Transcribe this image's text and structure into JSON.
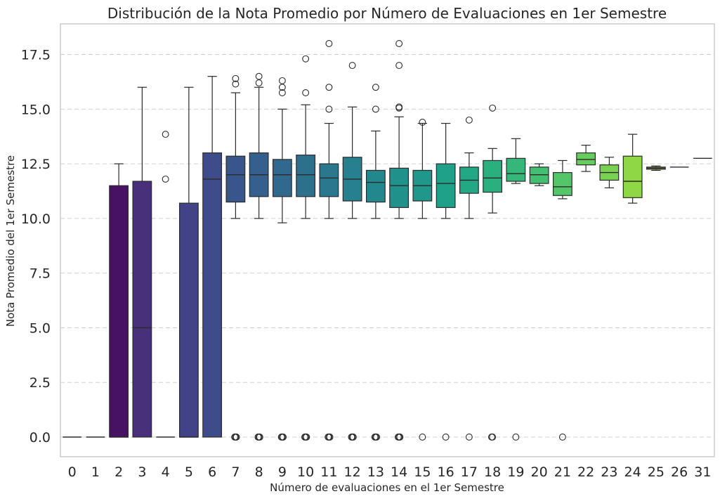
{
  "chart_data": {
    "type": "box",
    "title": "Distribución de la Nota Promedio por Número de Evaluaciones en 1er Semestre",
    "xlabel": "Número de evaluaciones en el 1er Semestre",
    "ylabel": "Nota Promedio del 1er Semestre",
    "ylim": [
      -0.9,
      18.9
    ],
    "yticks": [
      "0.0",
      "2.5",
      "5.0",
      "7.5",
      "10.0",
      "12.5",
      "15.0",
      "17.5"
    ],
    "grid": "horizontal dashed",
    "palette": "viridis",
    "categories": [
      "0",
      "1",
      "2",
      "3",
      "4",
      "5",
      "6",
      "7",
      "8",
      "9",
      "10",
      "11",
      "12",
      "13",
      "14",
      "15",
      "16",
      "17",
      "18",
      "19",
      "20",
      "21",
      "22",
      "23",
      "24",
      "25",
      "26",
      "31"
    ],
    "boxes": [
      {
        "category": "0",
        "whislo": 0,
        "q1": 0,
        "med": 0,
        "q3": 0,
        "whishi": 0,
        "fliers": [],
        "color": "#440154"
      },
      {
        "category": "1",
        "whislo": 0,
        "q1": 0,
        "med": 0,
        "q3": 0,
        "whishi": 0,
        "fliers": [],
        "color": "#46085c"
      },
      {
        "category": "2",
        "whislo": 0,
        "q1": 0,
        "med": 0,
        "q3": 11.5,
        "whishi": 12.5,
        "fliers": [],
        "color": "#471164"
      },
      {
        "category": "3",
        "whislo": 0,
        "q1": 0,
        "med": 5.0,
        "q3": 11.7,
        "whishi": 16.0,
        "fliers": [],
        "color": "#48307a"
      },
      {
        "category": "4",
        "whislo": 0,
        "q1": 0,
        "med": 0,
        "q3": 0,
        "whishi": 0,
        "fliers": [
          11.8,
          13.85
        ],
        "color": "#453882"
      },
      {
        "category": "5",
        "whislo": 0,
        "q1": 0,
        "med": 0,
        "q3": 10.7,
        "whishi": 16.0,
        "fliers": [],
        "color": "#414287"
      },
      {
        "category": "6",
        "whislo": 0,
        "q1": 0,
        "med": 11.8,
        "q3": 13.0,
        "whishi": 16.5,
        "fliers": [],
        "color": "#3e4c8a"
      },
      {
        "category": "7",
        "whislo": 10.0,
        "q1": 10.75,
        "med": 12.0,
        "q3": 12.85,
        "whishi": 15.75,
        "fliers": [
          0,
          0,
          0,
          16.15,
          16.4
        ],
        "color": "#39568c"
      },
      {
        "category": "8",
        "whislo": 10.0,
        "q1": 11.0,
        "med": 12.0,
        "q3": 13.0,
        "whishi": 16.0,
        "fliers": [
          0,
          0,
          0,
          16.2,
          16.5
        ],
        "color": "#355f8d"
      },
      {
        "category": "9",
        "whislo": 9.8,
        "q1": 11.0,
        "med": 12.0,
        "q3": 12.7,
        "whishi": 15.0,
        "fliers": [
          0,
          0,
          0,
          15.75,
          16.0,
          16.3
        ],
        "color": "#31688e"
      },
      {
        "category": "10",
        "whislo": 10.0,
        "q1": 11.0,
        "med": 12.0,
        "q3": 12.9,
        "whishi": 15.2,
        "fliers": [
          0,
          0,
          0,
          15.75,
          17.3
        ],
        "color": "#2d708e"
      },
      {
        "category": "11",
        "whislo": 10.0,
        "q1": 11.0,
        "med": 11.85,
        "q3": 12.5,
        "whishi": 14.35,
        "fliers": [
          0,
          0,
          0,
          15.0,
          16.0,
          18.0
        ],
        "color": "#2a788e"
      },
      {
        "category": "12",
        "whislo": 10.0,
        "q1": 10.8,
        "med": 11.8,
        "q3": 12.8,
        "whishi": 15.1,
        "fliers": [
          0,
          0,
          0,
          17.0
        ],
        "color": "#27808e"
      },
      {
        "category": "13",
        "whislo": 10.0,
        "q1": 10.75,
        "med": 11.65,
        "q3": 12.2,
        "whishi": 14.0,
        "fliers": [
          0,
          0,
          0,
          15.0,
          16.0
        ],
        "color": "#23888e"
      },
      {
        "category": "14",
        "whislo": 10.0,
        "q1": 10.5,
        "med": 11.5,
        "q3": 12.3,
        "whishi": 14.65,
        "fliers": [
          0,
          0,
          0,
          15.05,
          15.1,
          17.0,
          18.0
        ],
        "color": "#21918c"
      },
      {
        "category": "15",
        "whislo": 10.0,
        "q1": 10.8,
        "med": 11.5,
        "q3": 12.2,
        "whishi": 14.35,
        "fliers": [
          0,
          14.4
        ],
        "color": "#1f988b"
      },
      {
        "category": "16",
        "whislo": 10.0,
        "q1": 10.5,
        "med": 11.6,
        "q3": 12.5,
        "whishi": 14.35,
        "fliers": [
          0
        ],
        "color": "#1fa088"
      },
      {
        "category": "17",
        "whislo": 10.0,
        "q1": 11.15,
        "med": 11.75,
        "q3": 12.35,
        "whishi": 13.0,
        "fliers": [
          0,
          14.5
        ],
        "color": "#22a884"
      },
      {
        "category": "18",
        "whislo": 10.25,
        "q1": 11.2,
        "med": 11.85,
        "q3": 12.65,
        "whishi": 13.2,
        "fliers": [
          0,
          0,
          15.05
        ],
        "color": "#2ab07f"
      },
      {
        "category": "19",
        "whislo": 11.6,
        "q1": 11.7,
        "med": 12.05,
        "q3": 12.75,
        "whishi": 13.65,
        "fliers": [
          0
        ],
        "color": "#35b779"
      },
      {
        "category": "20",
        "whislo": 11.5,
        "q1": 11.6,
        "med": 12.0,
        "q3": 12.35,
        "whishi": 12.5,
        "fliers": [],
        "color": "#43bf71"
      },
      {
        "category": "21",
        "whislo": 10.9,
        "q1": 11.05,
        "med": 11.45,
        "q3": 12.1,
        "whishi": 12.65,
        "fliers": [
          0
        ],
        "color": "#54c568"
      },
      {
        "category": "22",
        "whislo": 12.15,
        "q1": 12.45,
        "med": 12.7,
        "q3": 13.0,
        "whishi": 13.35,
        "fliers": [],
        "color": "#66cc5d"
      },
      {
        "category": "23",
        "whislo": 11.4,
        "q1": 11.75,
        "med": 12.1,
        "q3": 12.45,
        "whishi": 12.8,
        "fliers": [],
        "color": "#7ad151"
      },
      {
        "category": "24",
        "whislo": 10.7,
        "q1": 10.95,
        "med": 11.7,
        "q3": 12.85,
        "whishi": 13.85,
        "fliers": [],
        "color": "#8fd744"
      },
      {
        "category": "25",
        "whislo": 12.2,
        "q1": 12.25,
        "med": 12.3,
        "q3": 12.35,
        "whishi": 12.4,
        "fliers": [],
        "color": "#a5db36"
      },
      {
        "category": "26",
        "whislo": 12.35,
        "q1": 12.35,
        "med": 12.35,
        "q3": 12.35,
        "whishi": 12.35,
        "fliers": [],
        "color": "#bddf26"
      },
      {
        "category": "31",
        "whislo": 12.75,
        "q1": 12.75,
        "med": 12.75,
        "q3": 12.75,
        "whishi": 12.75,
        "fliers": [],
        "color": "#d2e21b"
      }
    ]
  }
}
